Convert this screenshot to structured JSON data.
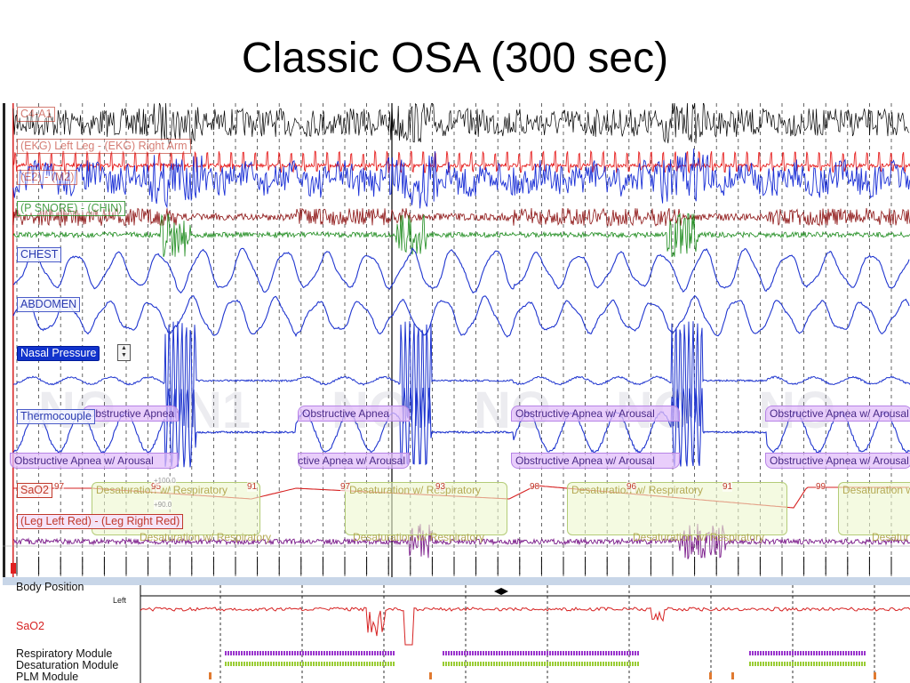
{
  "slide": {
    "title": "Classic OSA (300 sec)"
  },
  "channels": [
    {
      "id": "c3a2",
      "label": "C4-A1",
      "style": "ghost",
      "color": "#000000"
    },
    {
      "id": "ekg",
      "label": "(EKG) Left Leg - (EKG) Right Arm",
      "style": "ghost",
      "color": "#e62020"
    },
    {
      "id": "e2",
      "label": "(E2) - (M2)",
      "style": "ghost",
      "color": "#1a2fd6"
    },
    {
      "id": "snore",
      "label": "(P SNORE) - (CHIN)",
      "style": "green",
      "color": "#8b1010"
    },
    {
      "id": "chest",
      "label": "CHEST",
      "style": "normal",
      "color": "#1f35cf"
    },
    {
      "id": "abdomen",
      "label": "ABDOMEN",
      "style": "normal",
      "color": "#1f35cf"
    },
    {
      "id": "nasal",
      "label": "Nasal Pressure",
      "style": "selected",
      "color": "#2233cc"
    },
    {
      "id": "thermo",
      "label": "Thermocouple",
      "style": "normal",
      "color": "#2233cc"
    },
    {
      "id": "sao2",
      "label": "SaO2",
      "style": "red",
      "color": "#d62222"
    },
    {
      "id": "legs",
      "label": "(Leg Left Red) - (Leg Right Red)",
      "style": "red",
      "color": "#7a1a8a"
    }
  ],
  "events": {
    "apnea_top": [
      {
        "text": "Obstructive Apnea w/ Arousal"
      },
      {
        "text": "Obstructive Apnea"
      },
      {
        "text": "Obstructive Apnea w/ Arousal"
      },
      {
        "text": "Obstructive Apnea w/ Arousal"
      }
    ],
    "apnea_bottom": [
      {
        "text": "Obstructive Apnea w/ Arousal"
      },
      {
        "text": "Obstructive Apnea w/ Arousal"
      },
      {
        "text": "Obstructive Apnea w/ Arousal"
      },
      {
        "text": "Obstructive Apnea w/ Arousal"
      }
    ],
    "desat_top": [
      {
        "text": "Desaturation w/ Respiratory"
      },
      {
        "text": "Desaturation w/ Respiratory"
      },
      {
        "text": "Desaturation w/ Respiratory"
      },
      {
        "text": "Desaturation w/"
      }
    ],
    "desat_bottom": [
      {
        "text": "Desaturation w/ Respiratory"
      },
      {
        "text": "Desaturation w/ Respiratory"
      },
      {
        "text": "Desaturation w/ Respiratory"
      },
      {
        "text": "Desatur"
      }
    ]
  },
  "sao2_values": [
    "97",
    "95",
    "91",
    "97",
    "93",
    "98",
    "96",
    "91",
    "99"
  ],
  "sao2_scale": {
    "top": "+100.0",
    "bottom": "+90.0"
  },
  "sleep_stages": [
    "NO",
    "N1",
    "NO",
    "NO",
    "NO",
    "NO"
  ],
  "overview": {
    "body_position": "Body Position",
    "body_position_value": "Left",
    "sao2": "SaO2",
    "respiratory_module": "Respiratory Module",
    "desaturation_module": "Desaturation Module",
    "plm_module": "PLM Module"
  },
  "colors": {
    "eeg": "#000000",
    "ekg": "#e62020",
    "eog": "#1a2fd6",
    "snore": "#8b1010",
    "chin": "#1a8a1a",
    "effort": "#1f35cf",
    "event_purple": "#b784e6",
    "desat_green": "#b4cc78",
    "sao2": "#d62222",
    "legs": "#7a1a8a",
    "overview_resp": "#9933cc",
    "overview_desat": "#99cc33"
  }
}
